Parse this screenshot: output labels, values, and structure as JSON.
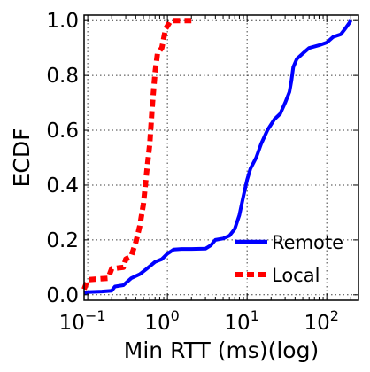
{
  "chart_data": {
    "type": "line",
    "xlabel": "Min RTT (ms)(log)",
    "ylabel": "ECDF",
    "xscale": "log",
    "xlim": [
      0.09,
      250
    ],
    "ylim": [
      -0.02,
      1.02
    ],
    "grid": true,
    "legend_position": "bottom-right",
    "x_tick_values": [
      0.1,
      1,
      10,
      100
    ],
    "x_tick_labels": [
      {
        "base": "10",
        "exp": "−1"
      },
      {
        "base": "10",
        "exp": "0"
      },
      {
        "base": "10",
        "exp": "1"
      },
      {
        "base": "10",
        "exp": "2"
      }
    ],
    "y_ticks": [
      "0.0",
      "0.2",
      "0.4",
      "0.6",
      "0.8",
      "1.0"
    ],
    "y_tick_values": [
      0.0,
      0.2,
      0.4,
      0.6,
      0.8,
      1.0
    ],
    "series": [
      {
        "name": "Remote",
        "color": "#0000ff",
        "style": "solid",
        "points": [
          [
            0.09,
            0.005
          ],
          [
            0.1,
            0.01
          ],
          [
            0.15,
            0.012
          ],
          [
            0.2,
            0.015
          ],
          [
            0.22,
            0.03
          ],
          [
            0.28,
            0.035
          ],
          [
            0.35,
            0.06
          ],
          [
            0.45,
            0.075
          ],
          [
            0.55,
            0.095
          ],
          [
            0.7,
            0.12
          ],
          [
            0.85,
            0.13
          ],
          [
            1.0,
            0.15
          ],
          [
            1.2,
            0.165
          ],
          [
            1.5,
            0.167
          ],
          [
            2.0,
            0.167
          ],
          [
            3.0,
            0.168
          ],
          [
            3.5,
            0.18
          ],
          [
            4.0,
            0.2
          ],
          [
            5.0,
            0.205
          ],
          [
            6.0,
            0.215
          ],
          [
            7.0,
            0.24
          ],
          [
            8.0,
            0.29
          ],
          [
            9.0,
            0.36
          ],
          [
            10.0,
            0.42
          ],
          [
            11.0,
            0.46
          ],
          [
            13.0,
            0.5
          ],
          [
            15.0,
            0.55
          ],
          [
            18.0,
            0.6
          ],
          [
            22.0,
            0.64
          ],
          [
            26.0,
            0.66
          ],
          [
            30.0,
            0.7
          ],
          [
            34.0,
            0.74
          ],
          [
            36.0,
            0.78
          ],
          [
            38.0,
            0.83
          ],
          [
            42.0,
            0.86
          ],
          [
            50.0,
            0.88
          ],
          [
            60.0,
            0.9
          ],
          [
            80.0,
            0.91
          ],
          [
            100.0,
            0.92
          ],
          [
            120.0,
            0.94
          ],
          [
            150.0,
            0.95
          ],
          [
            170.0,
            0.97
          ],
          [
            190.0,
            0.99
          ],
          [
            200.0,
            1.0
          ]
        ]
      },
      {
        "name": "Local",
        "color": "#ff0000",
        "style": "dashed",
        "points": [
          [
            0.09,
            0.02
          ],
          [
            0.1,
            0.055
          ],
          [
            0.18,
            0.06
          ],
          [
            0.2,
            0.095
          ],
          [
            0.28,
            0.1
          ],
          [
            0.3,
            0.13
          ],
          [
            0.35,
            0.14
          ],
          [
            0.4,
            0.19
          ],
          [
            0.45,
            0.25
          ],
          [
            0.5,
            0.33
          ],
          [
            0.55,
            0.45
          ],
          [
            0.6,
            0.55
          ],
          [
            0.65,
            0.7
          ],
          [
            0.7,
            0.81
          ],
          [
            0.75,
            0.88
          ],
          [
            0.85,
            0.9
          ],
          [
            0.95,
            0.97
          ],
          [
            1.1,
            1.0
          ],
          [
            2.0,
            1.0
          ]
        ]
      }
    ]
  }
}
